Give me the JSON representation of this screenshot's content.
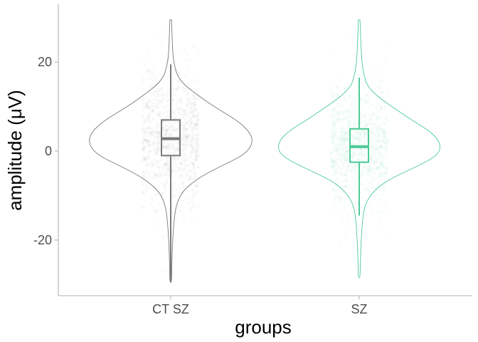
{
  "chart_data": {
    "type": "violin",
    "xlabel": "groups",
    "ylabel": "amplitude (μV)",
    "ylim": [
      -32.5,
      33
    ],
    "yticks": [
      -20,
      0,
      20
    ],
    "ytick_labels": [
      "-20",
      "0",
      "20"
    ],
    "categories": [
      "CT SZ",
      "SZ"
    ],
    "grid": false,
    "legend": "none",
    "series": [
      {
        "category": "CT SZ",
        "color": "#7a7a7a",
        "jitter_color": "#9e9e9e",
        "box": {
          "min": -29.5,
          "q1": -1,
          "median": 2.8,
          "q3": 7,
          "max": 19.5
        },
        "violin_range": [
          -29.5,
          29.5
        ],
        "violin_profile": [
          [
            29.5,
            0.01
          ],
          [
            27,
            0.015
          ],
          [
            24,
            0.02
          ],
          [
            21,
            0.03
          ],
          [
            19,
            0.05
          ],
          [
            17,
            0.08
          ],
          [
            15,
            0.16
          ],
          [
            13,
            0.3
          ],
          [
            11,
            0.45
          ],
          [
            9,
            0.62
          ],
          [
            7,
            0.8
          ],
          [
            5,
            0.93
          ],
          [
            3,
            1.0
          ],
          [
            1,
            0.985
          ],
          [
            -1,
            0.88
          ],
          [
            -3,
            0.66
          ],
          [
            -5,
            0.44
          ],
          [
            -7,
            0.27
          ],
          [
            -9,
            0.15
          ],
          [
            -11,
            0.09
          ],
          [
            -13,
            0.06
          ],
          [
            -15,
            0.045
          ],
          [
            -17,
            0.035
          ],
          [
            -19,
            0.028
          ],
          [
            -21,
            0.022
          ],
          [
            -24,
            0.016
          ],
          [
            -27,
            0.012
          ],
          [
            -29.5,
            0.01
          ]
        ]
      },
      {
        "category": "SZ",
        "color": "#4ecb98",
        "jitter_color": "#7fdcb8",
        "box": {
          "min": -14.5,
          "q1": -2.5,
          "median": 1,
          "q3": 5,
          "max": 16.5
        },
        "violin_range": [
          -28.5,
          29.5
        ],
        "violin_profile": [
          [
            29.5,
            0.01
          ],
          [
            27,
            0.015
          ],
          [
            24,
            0.02
          ],
          [
            21,
            0.03
          ],
          [
            19,
            0.04
          ],
          [
            17,
            0.06
          ],
          [
            15,
            0.09
          ],
          [
            13,
            0.18
          ],
          [
            11,
            0.32
          ],
          [
            9,
            0.48
          ],
          [
            7,
            0.64
          ],
          [
            5,
            0.82
          ],
          [
            3,
            0.95
          ],
          [
            1,
            1.0
          ],
          [
            -1,
            0.95
          ],
          [
            -3,
            0.76
          ],
          [
            -5,
            0.52
          ],
          [
            -7,
            0.31
          ],
          [
            -9,
            0.18
          ],
          [
            -11,
            0.1
          ],
          [
            -13,
            0.06
          ],
          [
            -15,
            0.045
          ],
          [
            -17,
            0.035
          ],
          [
            -19,
            0.028
          ],
          [
            -21,
            0.022
          ],
          [
            -24,
            0.016
          ],
          [
            -26,
            0.012
          ],
          [
            -28.5,
            0.01
          ]
        ]
      }
    ]
  }
}
